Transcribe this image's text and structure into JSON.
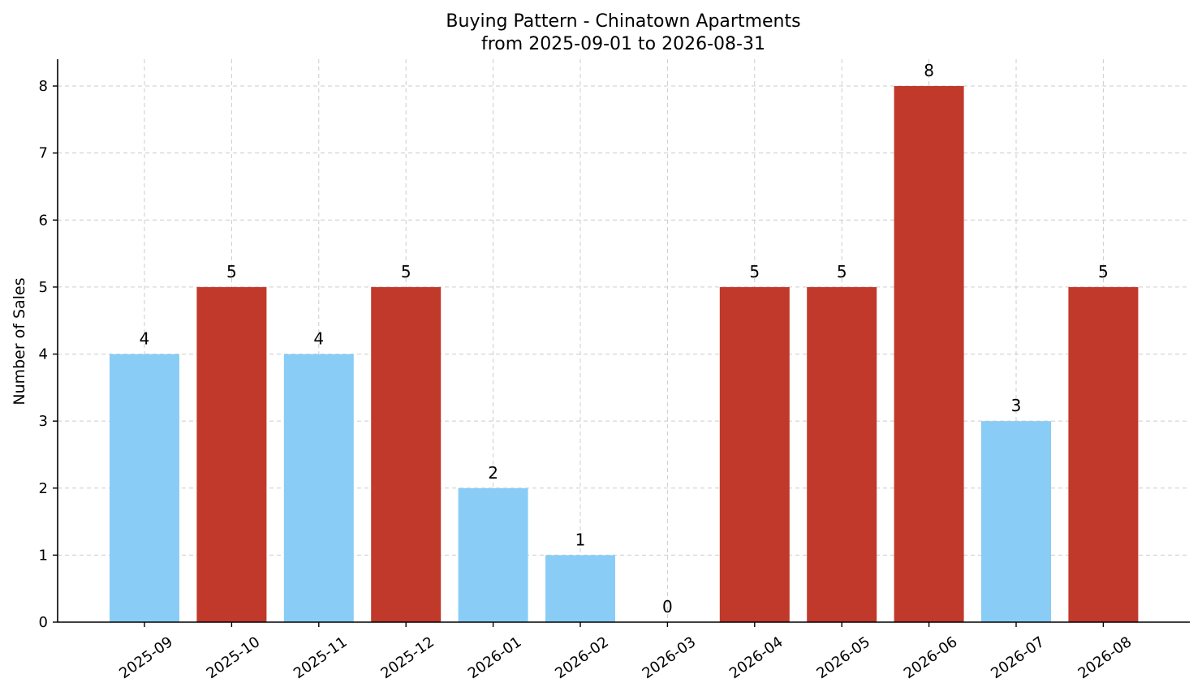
{
  "chart_data": {
    "type": "bar",
    "title": "Buying Pattern - Chinatown Apartments",
    "subtitle": "from 2025-09-01 to 2026-08-31",
    "xlabel": "",
    "ylabel": "Number of Sales",
    "ylim": [
      0,
      8.4
    ],
    "yticks": [
      0,
      1,
      2,
      3,
      4,
      5,
      6,
      7,
      8
    ],
    "grid": true,
    "categories": [
      "2025-09",
      "2025-10",
      "2025-11",
      "2025-12",
      "2026-01",
      "2026-02",
      "2026-03",
      "2026-04",
      "2026-05",
      "2026-06",
      "2026-07",
      "2026-08"
    ],
    "values": [
      4,
      5,
      4,
      5,
      2,
      1,
      0,
      5,
      5,
      8,
      3,
      5
    ],
    "bar_colors": [
      "#89cdf6",
      "#c0392b",
      "#89cdf6",
      "#c0392b",
      "#89cdf6",
      "#89cdf6",
      "#89cdf6",
      "#c0392b",
      "#c0392b",
      "#c0392b",
      "#89cdf6",
      "#c0392b"
    ],
    "data_labels": [
      "4",
      "5",
      "4",
      "5",
      "2",
      "1",
      "0",
      "5",
      "5",
      "8",
      "3",
      "5"
    ]
  }
}
